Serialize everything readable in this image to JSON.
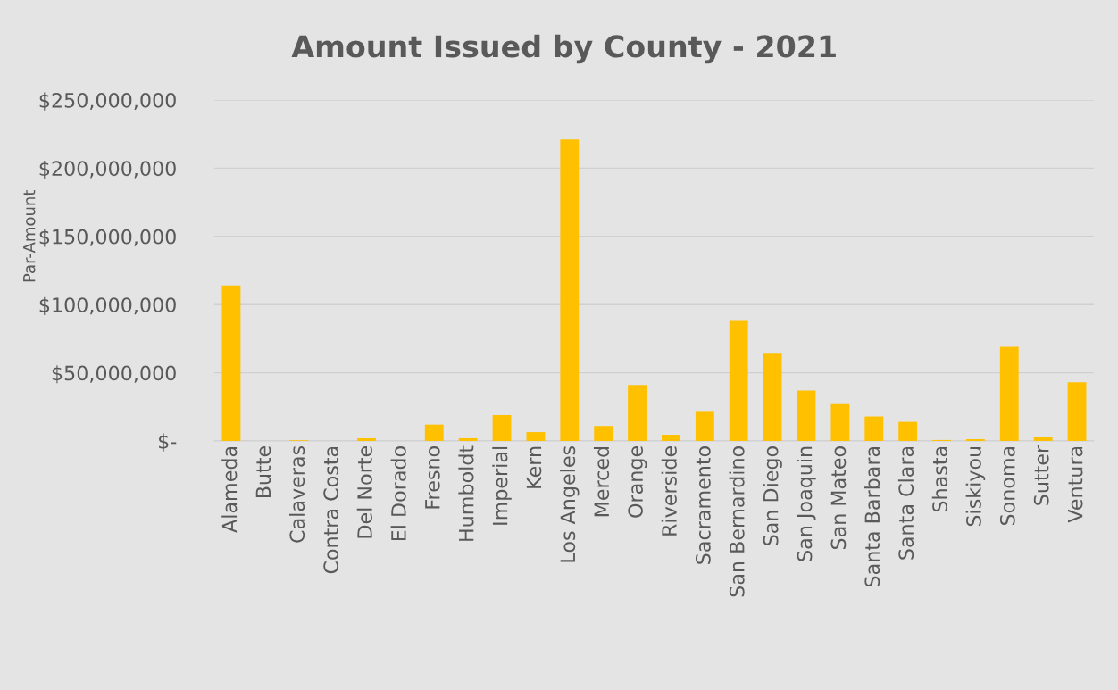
{
  "chart_data": {
    "type": "bar",
    "title": "Amount Issued by County - 2021",
    "ylabel": "Par-Amount",
    "categories": [
      "Alameda",
      "Butte",
      "Calaveras",
      "Contra Costa",
      "Del Norte",
      "El Dorado",
      "Fresno",
      "Humboldt",
      "Imperial",
      "Kern",
      "Los Angeles",
      "Merced",
      "Orange",
      "Riverside",
      "Sacramento",
      "San Bernardino",
      "San Diego",
      "San Joaquin",
      "San Mateo",
      "Santa Barbara",
      "Santa Clara",
      "Shasta",
      "Siskiyou",
      "Sonoma",
      "Sutter",
      "Ventura"
    ],
    "values": [
      114000000,
      null,
      500000,
      null,
      2000000,
      0,
      12000000,
      2000000,
      19000000,
      6500000,
      221000000,
      11000000,
      41000000,
      4600000,
      22000000,
      88000000,
      64000000,
      37000000,
      27000000,
      18000000,
      14000000,
      700000,
      1300000,
      69000000,
      2600000,
      43000000
    ],
    "color": "#ffc000",
    "ylim": [
      0,
      250000000
    ],
    "yticks": [
      {
        "value": 0,
        "label": "$-"
      },
      {
        "value": 50000000,
        "label": "$50,000,000"
      },
      {
        "value": 100000000,
        "label": "$100,000,000"
      },
      {
        "value": 150000000,
        "label": "$150,000,000"
      },
      {
        "value": 200000000,
        "label": "$200,000,000"
      },
      {
        "value": 250000000,
        "label": "$250,000,000"
      }
    ],
    "grid": "y"
  }
}
